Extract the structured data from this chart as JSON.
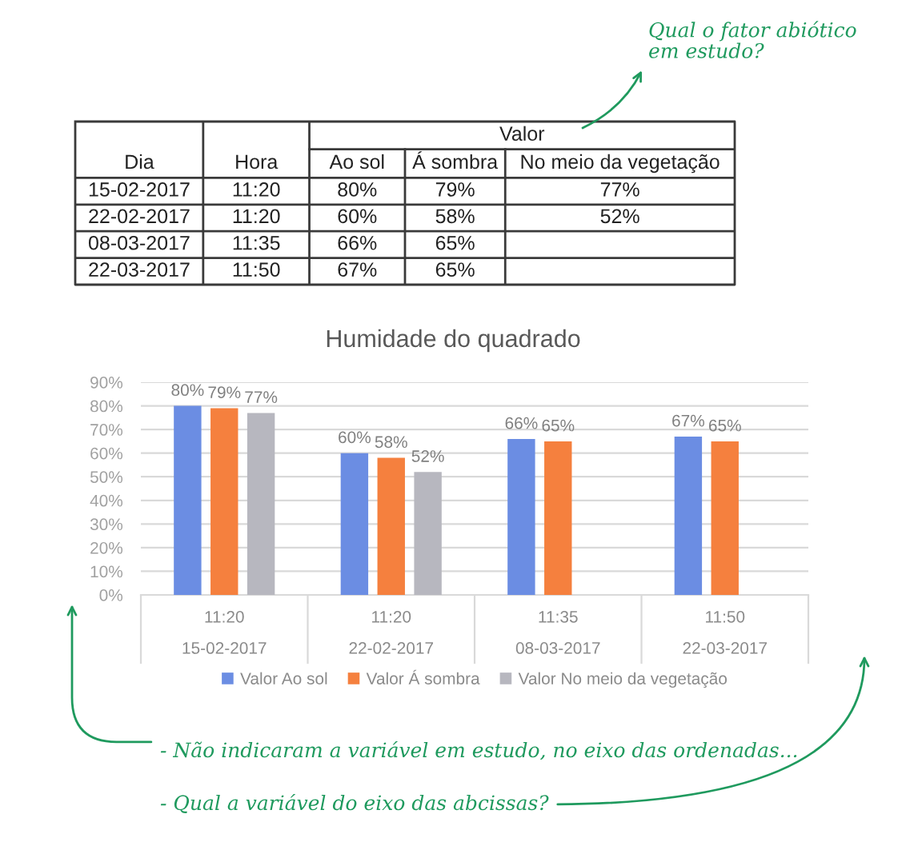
{
  "chart_data": [
    {
      "type": "other",
      "title": "Valor",
      "categories": [
        "Dia",
        "Hora",
        "Ao sol",
        "Á sombra",
        "No meio da vegetação"
      ],
      "cell_labels": [
        [
          "15-02-2017",
          "11:20",
          "80%",
          "79%",
          "77%"
        ],
        [
          "22-02-2017",
          "11:20",
          "60%",
          "58%",
          "52%"
        ],
        [
          "08-03-2017",
          "11:35",
          "66%",
          "65%",
          null
        ],
        [
          "22-03-2017",
          "11:50",
          "67%",
          "65%",
          null
        ]
      ],
      "annotations": [
        "Qual o fator abiótico\nem estudo?"
      ]
    },
    {
      "type": "bar",
      "title": "Humidade do quadrado",
      "categories": [
        "11:20\n15-02-2017",
        "11:20\n22-02-2017",
        "11:35\n08-03-2017",
        "11:50\n22-03-2017"
      ],
      "series": [
        {
          "name": "Valor Ao sol",
          "color": "#6b8de3",
          "values": [
            80,
            60,
            66,
            67
          ],
          "value_labels": [
            "80%",
            "60%",
            "66%",
            "67%"
          ]
        },
        {
          "name": "Valor Á sombra",
          "color": "#f5803e",
          "values": [
            79,
            58,
            65,
            65
          ],
          "value_labels": [
            "79%",
            "58%",
            "65%",
            "65%"
          ]
        },
        {
          "name": "Valor No meio da vegetação",
          "color": "#b7b7bf",
          "values": [
            77,
            52,
            null,
            null
          ],
          "value_labels": [
            "77%",
            "52%",
            null,
            null
          ]
        }
      ],
      "ylim": [
        0,
        90
      ],
      "yticks": [
        {
          "value": 0,
          "label": "0%"
        },
        {
          "value": 10,
          "label": "10%"
        },
        {
          "value": 20,
          "label": "20%"
        },
        {
          "value": 30,
          "label": "30%"
        },
        {
          "value": 40,
          "label": "40%"
        },
        {
          "value": 50,
          "label": "50%"
        },
        {
          "value": 60,
          "label": "60%"
        },
        {
          "value": 70,
          "label": "70%"
        },
        {
          "value": 80,
          "label": "80%"
        },
        {
          "value": 90,
          "label": "90%"
        }
      ],
      "grid": "y",
      "legend": "bottom",
      "annotations": [
        "- Não indicaram a variável em estudo, no eixo das ordenadas...",
        "- Qual a variável do eixo das abcissas?"
      ]
    }
  ]
}
